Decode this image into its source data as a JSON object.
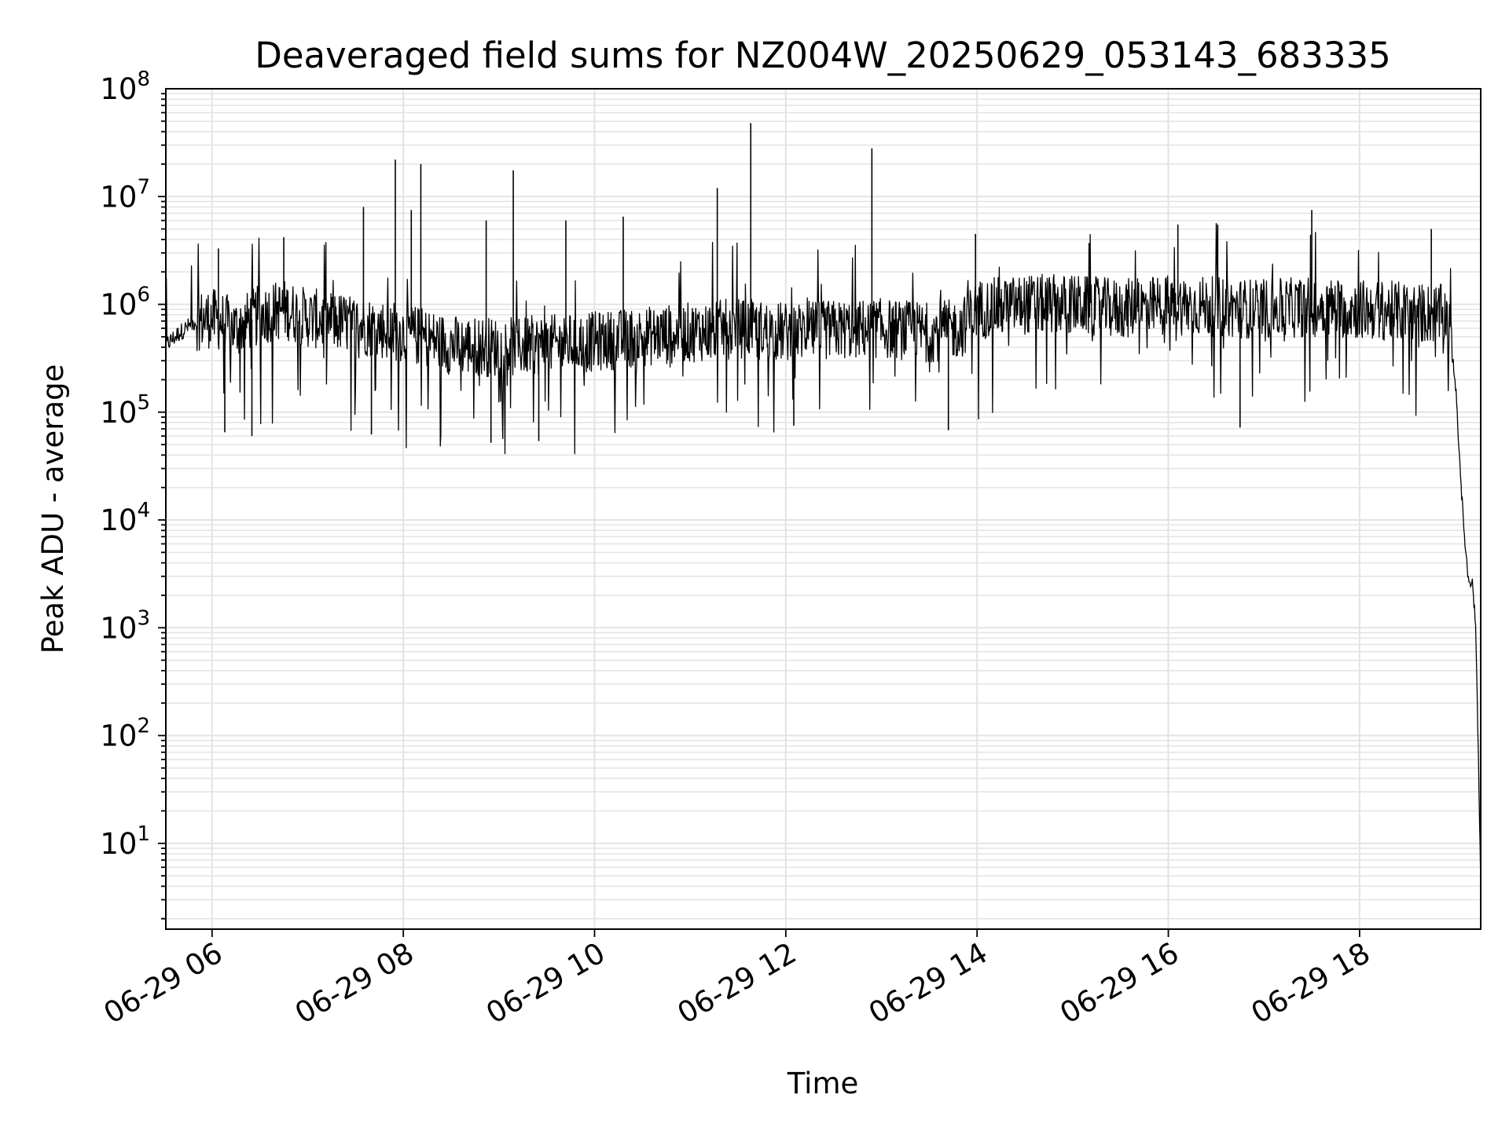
{
  "chart_data": {
    "type": "line",
    "title": "Deaveraged field sums for NZ004W_20250629_053143_683335",
    "xlabel": "Time",
    "ylabel": "Peak ADU - average",
    "yscale": "log",
    "ylim": [
      1.6,
      100000000
    ],
    "xlim": [
      "2025-06-29 05:31",
      "2025-06-29 19:16"
    ],
    "grid": "on (major and minor)",
    "line_color": "#000000",
    "x_ticks": [
      "06-29 06",
      "06-29 08",
      "06-29 10",
      "06-29 12",
      "06-29 14",
      "06-29 16",
      "06-29 18"
    ],
    "y_ticks": [
      {
        "base": "10",
        "exp": "1",
        "value": 10
      },
      {
        "base": "10",
        "exp": "2",
        "value": 100
      },
      {
        "base": "10",
        "exp": "3",
        "value": 1000
      },
      {
        "base": "10",
        "exp": "4",
        "value": 10000
      },
      {
        "base": "10",
        "exp": "5",
        "value": 100000
      },
      {
        "base": "10",
        "exp": "6",
        "value": 1000000
      },
      {
        "base": "10",
        "exp": "7",
        "value": 10000000
      },
      {
        "base": "10",
        "exp": "8",
        "value": 100000000
      }
    ],
    "series": [
      {
        "name": "",
        "x": [
          "2025-06-29 05:31",
          "2025-06-29 05:40",
          "2025-06-29 05:50",
          "2025-06-29 06:00",
          "2025-06-29 06:15",
          "2025-06-29 06:30",
          "2025-06-29 06:45",
          "2025-06-29 07:00",
          "2025-06-29 07:30",
          "2025-06-29 08:00",
          "2025-06-29 08:30",
          "2025-06-29 09:00",
          "2025-06-29 09:30",
          "2025-06-29 10:00",
          "2025-06-29 10:30",
          "2025-06-29 11:00",
          "2025-06-29 11:30",
          "2025-06-29 12:00",
          "2025-06-29 12:30",
          "2025-06-29 13:00",
          "2025-06-29 13:30",
          "2025-06-29 13:50",
          "2025-06-29 14:00",
          "2025-06-29 14:30",
          "2025-06-29 15:00",
          "2025-06-29 15:30",
          "2025-06-29 16:00",
          "2025-06-29 16:30",
          "2025-06-29 17:00",
          "2025-06-29 17:30",
          "2025-06-29 18:00",
          "2025-06-29 18:30",
          "2025-06-29 18:55",
          "2025-06-29 19:00",
          "2025-06-29 19:05",
          "2025-06-29 19:08",
          "2025-06-29 19:11",
          "2025-06-29 19:13",
          "2025-06-29 19:15",
          "2025-06-29 19:16"
        ],
        "values": [
          420000,
          550000,
          700000,
          750000,
          600000,
          800000,
          900000,
          750000,
          650000,
          550000,
          420000,
          400000,
          420000,
          450000,
          500000,
          550000,
          600000,
          550000,
          580000,
          600000,
          550000,
          600000,
          900000,
          1000000,
          1000000,
          900000,
          1000000,
          950000,
          900000,
          950000,
          900000,
          850000,
          800000,
          200000,
          10000,
          3000,
          2500,
          900,
          30,
          4
        ]
      }
    ],
    "spikes": [
      {
        "x": "2025-06-29 06:04",
        "value": 3300000
      },
      {
        "x": "2025-06-29 06:45",
        "value": 4200000
      },
      {
        "x": "2025-06-29 07:35",
        "value": 8000000
      },
      {
        "x": "2025-06-29 07:55",
        "value": 22000000
      },
      {
        "x": "2025-06-29 08:11",
        "value": 20000000
      },
      {
        "x": "2025-06-29 08:05",
        "value": 7500000
      },
      {
        "x": "2025-06-29 08:52",
        "value": 6000000
      },
      {
        "x": "2025-06-29 09:09",
        "value": 17500000
      },
      {
        "x": "2025-06-29 09:42",
        "value": 6000000
      },
      {
        "x": "2025-06-29 10:18",
        "value": 6500000
      },
      {
        "x": "2025-06-29 11:17",
        "value": 12000000
      },
      {
        "x": "2025-06-29 11:38",
        "value": 48000000
      },
      {
        "x": "2025-06-29 12:54",
        "value": 28000000
      },
      {
        "x": "2025-06-29 13:59",
        "value": 4500000
      },
      {
        "x": "2025-06-29 16:06",
        "value": 5500000
      },
      {
        "x": "2025-06-29 16:31",
        "value": 5500000
      },
      {
        "x": "2025-06-29 17:30",
        "value": 7500000
      },
      {
        "x": "2025-06-29 18:45",
        "value": 5000000
      }
    ],
    "dips": [
      {
        "x": "2025-06-29 06:08",
        "value": 65000
      },
      {
        "x": "2025-06-29 06:25",
        "value": 60000
      },
      {
        "x": "2025-06-29 07:40",
        "value": 62000
      },
      {
        "x": "2025-06-29 08:55",
        "value": 52000
      },
      {
        "x": "2025-06-29 09:25",
        "value": 54000
      },
      {
        "x": "2025-06-29 12:05",
        "value": 75000
      },
      {
        "x": "2025-06-29 13:42",
        "value": 68000
      },
      {
        "x": "2025-06-29 16:45",
        "value": 72000
      }
    ]
  }
}
